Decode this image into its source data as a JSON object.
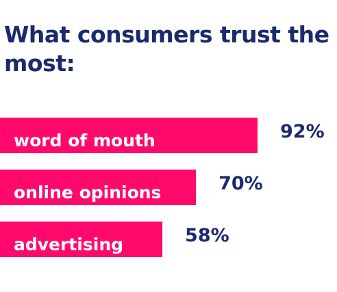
{
  "chart_data": {
    "type": "bar",
    "orientation": "horizontal",
    "title": "What consumers trust the most:",
    "categories": [
      "word of mouth",
      "online opinions",
      "advertising"
    ],
    "values": [
      92,
      70,
      58
    ],
    "value_labels": [
      "92%",
      "70%",
      "58%"
    ],
    "unit": "%",
    "xlim": [
      0,
      100
    ],
    "grid": false,
    "legend": "none",
    "bar_color": "#ff0a6c",
    "text_color": "#1b2a6e"
  }
}
